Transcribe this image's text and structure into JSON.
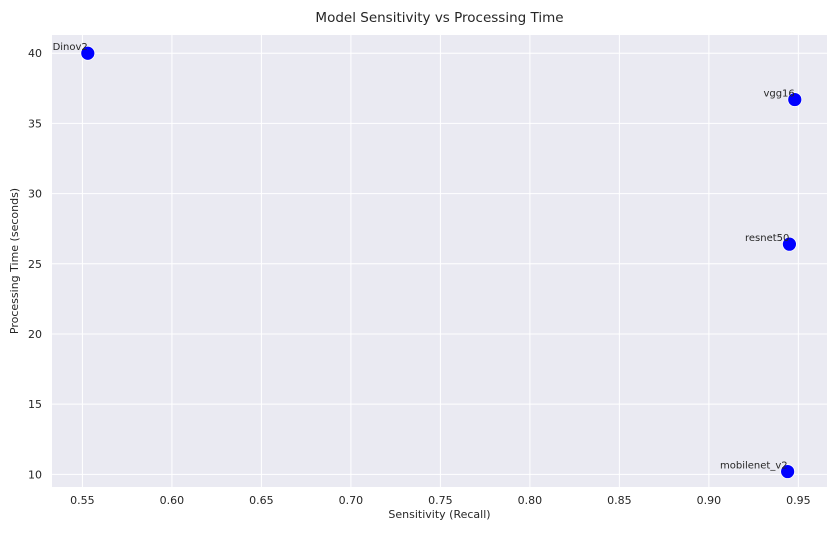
{
  "chart_data": {
    "type": "scatter",
    "title": "Model Sensitivity vs Processing Time",
    "xlabel": "Sensitivity (Recall)",
    "ylabel": "Processing Time (seconds)",
    "xlim": [
      0.533,
      0.966
    ],
    "ylim": [
      9.1,
      41.3
    ],
    "xticks": [
      0.55,
      0.6,
      0.65,
      0.7,
      0.75,
      0.8,
      0.85,
      0.9,
      0.95
    ],
    "xtick_labels": [
      "0.55",
      "0.60",
      "0.65",
      "0.70",
      "0.75",
      "0.80",
      "0.85",
      "0.90",
      "0.95"
    ],
    "yticks": [
      10,
      15,
      20,
      25,
      30,
      35,
      40
    ],
    "ytick_labels": [
      "10",
      "15",
      "20",
      "25",
      "30",
      "35",
      "40"
    ],
    "grid": true,
    "legend": "none",
    "background_color": "#eaeaf2",
    "grid_color": "#ffffff",
    "marker_color": "#0000ff",
    "points": [
      {
        "label": "Dinov2",
        "x": 0.553,
        "y": 40.0
      },
      {
        "label": "vgg16",
        "x": 0.948,
        "y": 36.7
      },
      {
        "label": "resnet50",
        "x": 0.945,
        "y": 26.4
      },
      {
        "label": "mobilenet_v2",
        "x": 0.944,
        "y": 10.2
      }
    ]
  }
}
